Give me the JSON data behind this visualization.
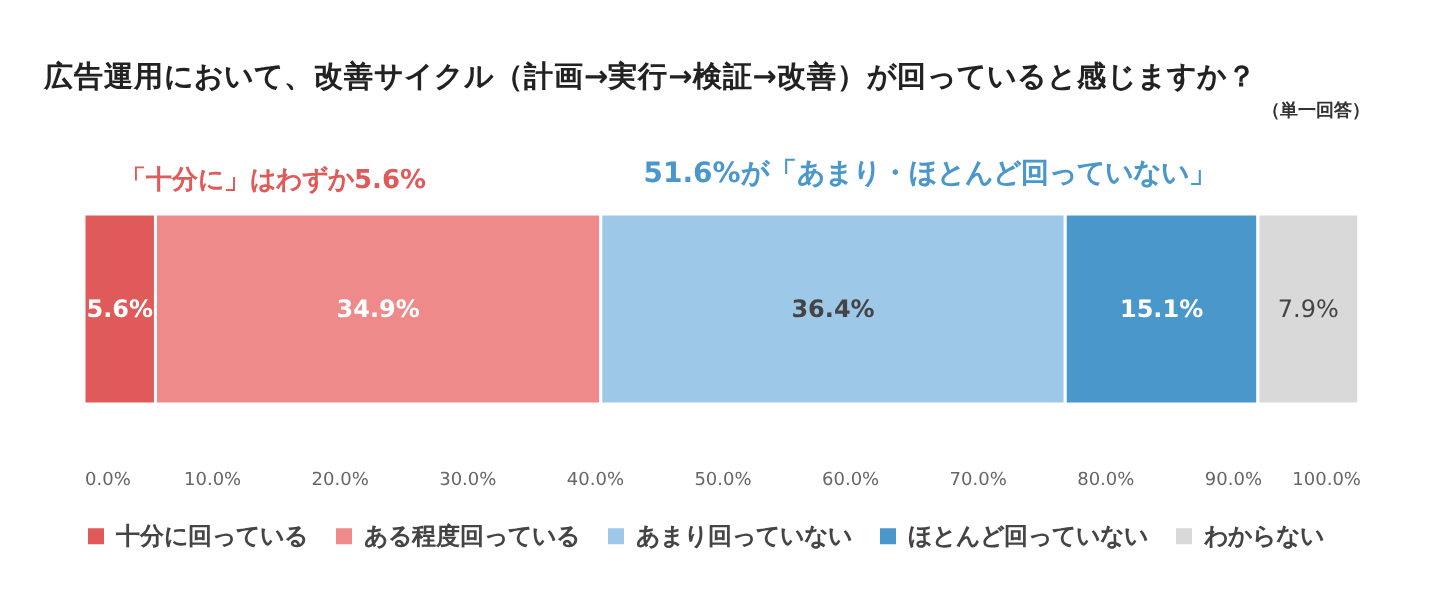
{
  "chart_data": {
    "type": "bar",
    "orientation": "horizontal",
    "stacked": true,
    "title": "広告運用において、改善サイクル（計画→実行→検証→改善）が回っていると感じますか？",
    "annotations": [
      "（単一回答）",
      "「十分に」はわずか5.6%",
      "51.6%が「あまり・ほとんど回っていない」"
    ],
    "categories": [
      null
    ],
    "series": [
      {
        "name": "十分に回っている",
        "color": "#e05a5a",
        "values": [
          5.6
        ],
        "value_labels": [
          "5.6%"
        ]
      },
      {
        "name": "ある程度回っている",
        "color": "#ef8a8a",
        "values": [
          34.9
        ],
        "value_labels": [
          "34.9%"
        ]
      },
      {
        "name": "あまり回っていない",
        "color": "#9dc8e8",
        "values": [
          36.4
        ],
        "value_labels": [
          "36.4%"
        ]
      },
      {
        "name": "ほとんど回っていない",
        "color": "#4a97cc",
        "values": [
          15.1
        ],
        "value_labels": [
          "15.1%"
        ]
      },
      {
        "name": "わからない",
        "color": "#d9d9d9",
        "values": [
          7.9
        ],
        "value_labels": [
          "7.9%"
        ]
      }
    ],
    "xlim": [
      0,
      100
    ],
    "xticks": [
      {
        "value": 0,
        "label": "0.0%"
      },
      {
        "value": 10,
        "label": "10.0%"
      },
      {
        "value": 20,
        "label": "20.0%"
      },
      {
        "value": 30,
        "label": "30.0%"
      },
      {
        "value": 40,
        "label": "40.0%"
      },
      {
        "value": 50,
        "label": "50.0%"
      },
      {
        "value": 60,
        "label": "60.0%"
      },
      {
        "value": 70,
        "label": "70.0%"
      },
      {
        "value": 80,
        "label": "80.0%"
      },
      {
        "value": 90,
        "label": "90.0%"
      },
      {
        "value": 100,
        "label": "100.0%"
      }
    ],
    "legend": "bottom",
    "grid": false
  }
}
